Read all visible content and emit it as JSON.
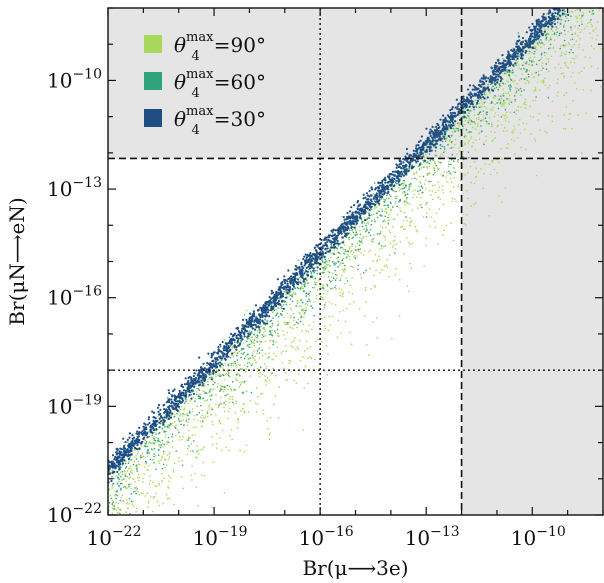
{
  "chart_data": {
    "type": "scatter",
    "xlabel": "Br(μ⟶3e)",
    "ylabel": "Br(μN⟶eN)",
    "x_scale": "log",
    "y_scale": "log",
    "xlim": [
      1e-22,
      1e-08
    ],
    "ylim": [
      1e-22,
      1e-08
    ],
    "x_ticks": [
      {
        "value": 1e-22,
        "base": "10",
        "exp": "−22"
      },
      {
        "value": 1e-19,
        "base": "10",
        "exp": "−19"
      },
      {
        "value": 1e-16,
        "base": "10",
        "exp": "−16"
      },
      {
        "value": 1e-13,
        "base": "10",
        "exp": "−13"
      },
      {
        "value": 1e-10,
        "base": "10",
        "exp": "−10"
      }
    ],
    "y_ticks": [
      {
        "value": 1e-22,
        "base": "10",
        "exp": "−22"
      },
      {
        "value": 1e-19,
        "base": "10",
        "exp": "−19"
      },
      {
        "value": 1e-16,
        "base": "10",
        "exp": "−16"
      },
      {
        "value": 1e-13,
        "base": "10",
        "exp": "−13"
      },
      {
        "value": 1e-10,
        "base": "10",
        "exp": "−10"
      }
    ],
    "shaded_regions": [
      {
        "axis": "y",
        "from": 7e-13,
        "to": 1e-08,
        "color": "#e5e5e5"
      },
      {
        "axis": "x",
        "from": 1e-12,
        "to": 1e-08,
        "color": "#e5e5e5"
      }
    ],
    "reference_lines": [
      {
        "axis": "y",
        "value": 7e-13,
        "style": "dashed"
      },
      {
        "axis": "x",
        "value": 1e-12,
        "style": "dashed"
      },
      {
        "axis": "x",
        "value": 1e-16,
        "style": "dotted"
      },
      {
        "axis": "y",
        "value": 1e-18,
        "style": "dotted"
      }
    ],
    "series": [
      {
        "name": "θ4max=90°",
        "label_symbol": "θ",
        "label_sub": "4",
        "label_sup": "max",
        "label_value": "=90°",
        "color": "#a8d85a",
        "spread_decades": 1.4,
        "n_points": 2200
      },
      {
        "name": "θ4max=60°",
        "label_symbol": "θ",
        "label_sub": "4",
        "label_sup": "max",
        "label_value": "=60°",
        "color": "#2fa37e",
        "spread_decades": 0.7,
        "n_points": 1200
      },
      {
        "name": "θ4max=30°",
        "label_symbol": "θ",
        "label_sub": "4",
        "label_sup": "max",
        "label_value": "=30°",
        "color": "#1f4e85",
        "spread_decades": 0.15,
        "n_points": 2600
      }
    ],
    "trend": {
      "x_start": 1e-22,
      "y_start": 1.7e-21,
      "slope": 1.0
    },
    "legend": "top-left",
    "grid": false
  }
}
